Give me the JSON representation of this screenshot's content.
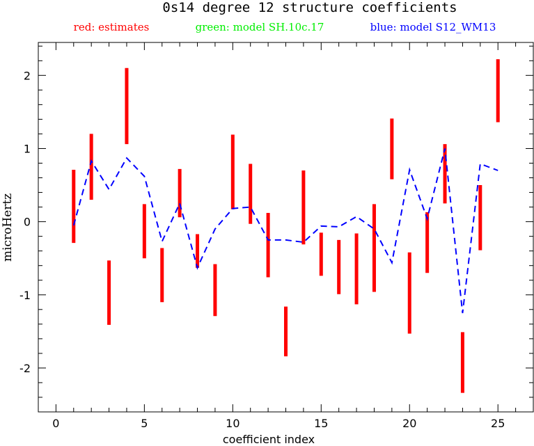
{
  "chart_data": {
    "type": "errorbar",
    "title": "0s14 degree 12 structure coefficients",
    "legend": [
      {
        "text": "red: estimates",
        "color": "#ff0000"
      },
      {
        "text": "green: model SH.10c.17",
        "color": "#00ee00"
      },
      {
        "text": "blue: model S12_WM13",
        "color": "#0000ff"
      }
    ],
    "xlabel": "coefficient index",
    "ylabel": "microHertz",
    "xlim": [
      -1,
      27
    ],
    "ylim": [
      -2.6,
      2.45
    ],
    "x_ticks": [
      0,
      5,
      10,
      15,
      20,
      25
    ],
    "x_tick_labels": [
      "0",
      "5",
      "10",
      "15",
      "20",
      "25"
    ],
    "y_ticks": [
      -2,
      -1,
      0,
      1,
      2
    ],
    "y_tick_labels": [
      "-2",
      "-1",
      "0",
      "1",
      "2"
    ],
    "estimates": {
      "color": "#ff0000",
      "ranges": [
        {
          "x": 1,
          "low": -0.29,
          "high": 0.71
        },
        {
          "x": 2,
          "low": 0.3,
          "high": 1.2
        },
        {
          "x": 3,
          "low": -1.41,
          "high": -0.53
        },
        {
          "x": 4,
          "low": 1.06,
          "high": 2.1
        },
        {
          "x": 5,
          "low": -0.5,
          "high": 0.24
        },
        {
          "x": 6,
          "low": -1.1,
          "high": -0.36
        },
        {
          "x": 7,
          "low": 0.06,
          "high": 0.72
        },
        {
          "x": 8,
          "low": -0.63,
          "high": -0.17
        },
        {
          "x": 9,
          "low": -1.29,
          "high": -0.58
        },
        {
          "x": 10,
          "low": 0.17,
          "high": 1.19
        },
        {
          "x": 11,
          "low": -0.03,
          "high": 0.79
        },
        {
          "x": 12,
          "low": -0.76,
          "high": 0.12
        },
        {
          "x": 13,
          "low": -1.84,
          "high": -1.16
        },
        {
          "x": 14,
          "low": -0.31,
          "high": 0.7
        },
        {
          "x": 15,
          "low": -0.74,
          "high": -0.15
        },
        {
          "x": 16,
          "low": -0.99,
          "high": -0.25
        },
        {
          "x": 17,
          "low": -1.13,
          "high": -0.16
        },
        {
          "x": 18,
          "low": -0.96,
          "high": 0.24
        },
        {
          "x": 19,
          "low": 0.58,
          "high": 1.41
        },
        {
          "x": 20,
          "low": -1.53,
          "high": -0.42
        },
        {
          "x": 21,
          "low": -0.7,
          "high": 0.13
        },
        {
          "x": 22,
          "low": 0.25,
          "high": 1.06
        },
        {
          "x": 23,
          "low": -2.34,
          "high": -1.51
        },
        {
          "x": 24,
          "low": -0.39,
          "high": 0.5
        },
        {
          "x": 25,
          "low": 1.36,
          "high": 2.22
        }
      ]
    },
    "model_blue": {
      "color": "#0000ff",
      "style": "dashed",
      "x": [
        1,
        2,
        3,
        4,
        5,
        6,
        7,
        8,
        9,
        10,
        11,
        12,
        13,
        14,
        15,
        16,
        17,
        18,
        19,
        20,
        21,
        22,
        23,
        24,
        25
      ],
      "y": [
        -0.05,
        0.83,
        0.44,
        0.87,
        0.62,
        -0.27,
        0.25,
        -0.63,
        -0.1,
        0.18,
        0.2,
        -0.25,
        -0.25,
        -0.28,
        -0.06,
        -0.07,
        0.07,
        -0.1,
        -0.56,
        0.71,
        0.04,
        1.0,
        -1.25,
        0.79,
        0.7
      ]
    }
  }
}
